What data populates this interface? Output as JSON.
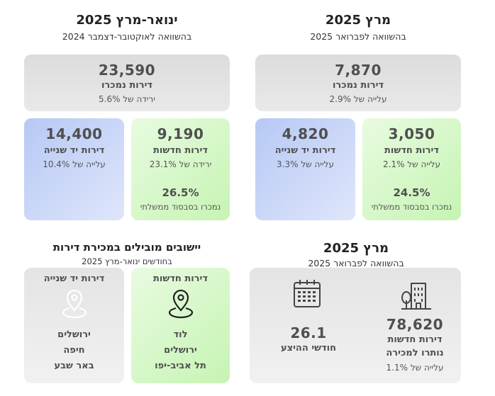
{
  "right": {
    "title": "מרץ 2025",
    "subtitle": "בהשוואה לפברואר 2025",
    "total": {
      "value": "7,870",
      "label": "דירות נמכרו",
      "change": "עלייה של 2.9%"
    },
    "new": {
      "value": "3,050",
      "label": "דירות חדשות",
      "change": "עלייה של 2.1%",
      "pct": "24.5%",
      "pct_label": "נמכרו בסבסוד ממשלתי"
    },
    "used": {
      "value": "4,820",
      "label": "דירות יד שנייה",
      "change": "עלייה של 3.3%"
    }
  },
  "left": {
    "title": "ינואר-מרץ 2025",
    "subtitle": "בהשוואה לאוקטובר-דצמבר 2024",
    "total": {
      "value": "23,590",
      "label": "דירות נמכרו",
      "change": "ירידה של 5.6%"
    },
    "new": {
      "value": "9,190",
      "label": "דירות חדשות",
      "change": "ירידה של 23.1%",
      "pct": "26.5%",
      "pct_label": "נמכרו בסבסוד ממשלתי"
    },
    "used": {
      "value": "14,400",
      "label": "דירות יד שנייה",
      "change": "עלייה של 10.4%"
    }
  },
  "bottom_right": {
    "title": "מרץ 2025",
    "subtitle": "בהשוואה לפברואר 2025",
    "inventory": {
      "value": "78,620",
      "label_line1": "דירות חדשות",
      "label_line2": "נותרו למכירה",
      "change": "עלייה של 1.1%",
      "icon": "building-icon"
    },
    "supply": {
      "value": "26.1",
      "label": "חודשי ההיצע",
      "icon": "calendar-icon"
    }
  },
  "bottom_left": {
    "title": "יישובים מובילים במכירת דירות",
    "subtitle": "בחודשים ינואר-מרץ 2025",
    "new": {
      "label": "דירות חדשות",
      "icon": "location-pin-icon",
      "cities": [
        "לוד",
        "ירושלים",
        "תל אביב-יפו"
      ]
    },
    "used": {
      "label": "דירות יד שנייה",
      "icon": "location-pin-icon",
      "cities": [
        "ירושלים",
        "חיפה",
        "באר שבע"
      ]
    }
  },
  "colors": {
    "green": "#c6f4b3",
    "blue": "#b6c8f4",
    "gray": "#e4e4e4"
  }
}
